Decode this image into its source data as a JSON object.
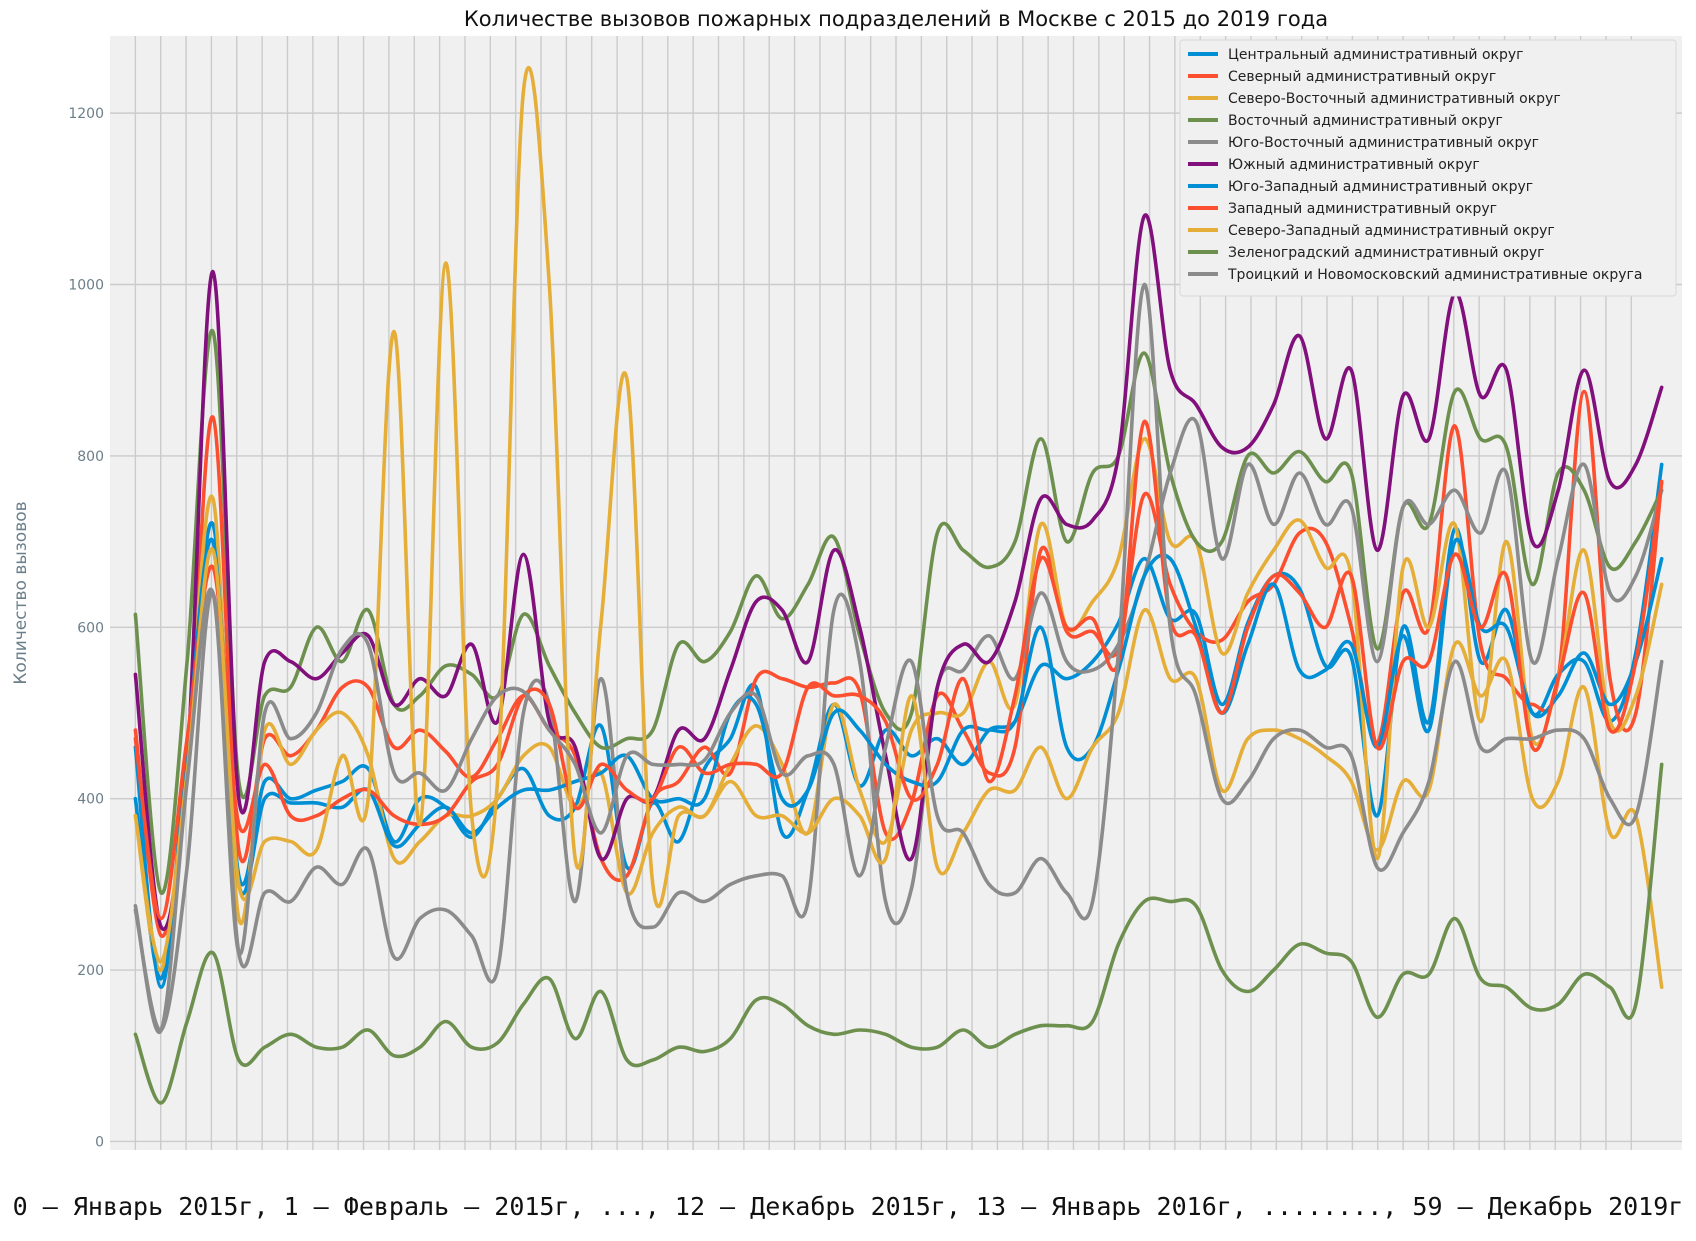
{
  "chart_data": {
    "type": "line",
    "title": "Количестве вызовов пожарных подразделений в Москве с 2015 до 2019 года",
    "xlabel": "",
    "ylabel": "Количество вызовов",
    "caption": "0 – Январь 2015г, 1 – Февраль – 2015г, ..., 12 – Декабрь 2015г, 13 – Январь 2016г, ........, 59 – Декабрь 2019г",
    "x": [
      0,
      1,
      2,
      3,
      4,
      5,
      6,
      7,
      8,
      9,
      10,
      11,
      12,
      13,
      14,
      15,
      16,
      17,
      18,
      19,
      20,
      21,
      22,
      23,
      24,
      25,
      26,
      27,
      28,
      29,
      30,
      31,
      32,
      33,
      34,
      35,
      36,
      37,
      38,
      39,
      40,
      41,
      42,
      43,
      44,
      45,
      46,
      47,
      48,
      49,
      50,
      51,
      52,
      53,
      54,
      55,
      56,
      57,
      58,
      59
    ],
    "xlim": [
      -1,
      61
    ],
    "ylim": [
      -10,
      1290
    ],
    "yticks": [
      0,
      200,
      400,
      600,
      800,
      1000,
      1200
    ],
    "grid": true,
    "background": "#f0f0f0",
    "legend_position": "top-right",
    "series": [
      {
        "name": "Центральный административный округ",
        "color": "#008fd5",
        "values": [
          400,
          190,
          450,
          720,
          310,
          420,
          400,
          410,
          420,
          435,
          350,
          400,
          390,
          355,
          400,
          435,
          380,
          390,
          485,
          320,
          395,
          350,
          435,
          470,
          530,
          360,
          410,
          510,
          415,
          480,
          450,
          470,
          440,
          480,
          490,
          555,
          540,
          560,
          605,
          680,
          610,
          615,
          510,
          605,
          660,
          645,
          555,
          565,
          380,
          600,
          490,
          715,
          560,
          620,
          500,
          545,
          560,
          490,
          570,
          790
        ]
      },
      {
        "name": "Северный административный округ",
        "color": "#fc4f30",
        "values": [
          480,
          240,
          430,
          845,
          340,
          470,
          450,
          480,
          530,
          530,
          460,
          480,
          455,
          425,
          470,
          520,
          480,
          450,
          330,
          310,
          400,
          420,
          460,
          430,
          540,
          540,
          530,
          535,
          525,
          360,
          395,
          520,
          480,
          430,
          460,
          690,
          595,
          595,
          575,
          755,
          650,
          595,
          585,
          630,
          650,
          710,
          700,
          600,
          465,
          640,
          600,
          835,
          580,
          540,
          510,
          540,
          875,
          540,
          500,
          770
        ]
      },
      {
        "name": "Северо-Восточный административный округ",
        "color": "#e5ae38",
        "values": [
          380,
          200,
          450,
          750,
          260,
          480,
          440,
          480,
          500,
          450,
          330,
          350,
          380,
          380,
          400,
          450,
          460,
          390,
          430,
          290,
          360,
          390,
          380,
          440,
          485,
          440,
          360,
          510,
          410,
          350,
          480,
          500,
          500,
          560,
          510,
          720,
          600,
          630,
          680,
          820,
          700,
          700,
          570,
          640,
          690,
          725,
          670,
          660,
          330,
          670,
          600,
          720,
          490,
          700,
          470,
          540,
          690,
          490,
          520,
          650
        ]
      },
      {
        "name": "Восточный административный округ",
        "color": "#6d904f",
        "values": [
          615,
          290,
          560,
          945,
          420,
          520,
          530,
          600,
          560,
          620,
          510,
          520,
          555,
          545,
          520,
          615,
          555,
          500,
          460,
          470,
          480,
          580,
          560,
          595,
          660,
          610,
          650,
          705,
          590,
          500,
          500,
          710,
          690,
          670,
          700,
          820,
          700,
          780,
          800,
          920,
          780,
          700,
          700,
          800,
          780,
          805,
          770,
          780,
          575,
          740,
          720,
          875,
          820,
          810,
          650,
          780,
          760,
          670,
          700,
          760
        ]
      },
      {
        "name": "Юго-Восточный административный округ",
        "color": "#8b8b8b",
        "values": [
          270,
          130,
          320,
          640,
          220,
          290,
          280,
          320,
          300,
          340,
          215,
          260,
          270,
          240,
          200,
          500,
          510,
          280,
          540,
          290,
          250,
          290,
          280,
          300,
          310,
          310,
          280,
          620,
          560,
          280,
          295,
          530,
          550,
          590,
          540,
          640,
          560,
          550,
          580,
          660,
          780,
          840,
          680,
          790,
          720,
          780,
          720,
          740,
          560,
          740,
          720,
          760,
          710,
          780,
          560,
          680,
          790,
          640,
          660,
          760
        ]
      },
      {
        "name": "Южный административный округ",
        "color": "#810f7c",
        "values": [
          545,
          250,
          440,
          1015,
          400,
          560,
          560,
          540,
          570,
          590,
          510,
          540,
          520,
          580,
          490,
          685,
          490,
          460,
          330,
          400,
          400,
          480,
          470,
          550,
          630,
          620,
          560,
          690,
          600,
          450,
          330,
          530,
          580,
          560,
          630,
          750,
          720,
          725,
          800,
          1080,
          900,
          860,
          810,
          810,
          860,
          940,
          820,
          900,
          690,
          870,
          820,
          990,
          870,
          900,
          700,
          760,
          900,
          770,
          790,
          880
        ]
      },
      {
        "name": "Юго-Западный административный округ",
        "color": "#008fd5",
        "values": [
          460,
          180,
          460,
          700,
          300,
          400,
          395,
          395,
          390,
          410,
          345,
          370,
          390,
          360,
          390,
          410,
          410,
          420,
          430,
          450,
          400,
          400,
          400,
          500,
          510,
          400,
          410,
          500,
          480,
          440,
          420,
          420,
          480,
          480,
          490,
          600,
          460,
          460,
          550,
          660,
          680,
          600,
          500,
          580,
          650,
          550,
          550,
          580,
          460,
          590,
          480,
          700,
          600,
          600,
          500,
          520,
          570,
          510,
          560,
          680
        ]
      },
      {
        "name": "Западный административный округ",
        "color": "#fc4f30",
        "values": [
          470,
          260,
          470,
          670,
          370,
          440,
          380,
          380,
          400,
          410,
          380,
          370,
          380,
          420,
          440,
          520,
          510,
          390,
          440,
          410,
          400,
          460,
          430,
          440,
          440,
          430,
          530,
          520,
          520,
          490,
          400,
          440,
          540,
          420,
          520,
          680,
          600,
          610,
          560,
          840,
          610,
          590,
          500,
          600,
          660,
          640,
          600,
          660,
          460,
          560,
          560,
          685,
          600,
          660,
          460,
          540,
          640,
          480,
          560,
          770
        ]
      },
      {
        "name": "Северо-Западный административный округ",
        "color": "#e5ae38",
        "values": [
          380,
          210,
          430,
          690,
          300,
          350,
          350,
          340,
          450,
          400,
          945,
          370,
          1025,
          380,
          420,
          1225,
          1000,
          330,
          605,
          890,
          300,
          380,
          380,
          420,
          380,
          380,
          360,
          400,
          380,
          330,
          520,
          320,
          360,
          410,
          410,
          460,
          400,
          460,
          500,
          620,
          540,
          540,
          410,
          470,
          480,
          470,
          450,
          420,
          340,
          420,
          410,
          580,
          520,
          560,
          400,
          420,
          530,
          360,
          380,
          180
        ]
      },
      {
        "name": "Зеленоградский административный округ",
        "color": "#6d904f",
        "values": [
          125,
          45,
          140,
          220,
          95,
          110,
          125,
          110,
          110,
          130,
          100,
          110,
          140,
          110,
          115,
          160,
          190,
          120,
          175,
          95,
          95,
          110,
          105,
          120,
          165,
          160,
          135,
          125,
          130,
          125,
          110,
          110,
          130,
          110,
          125,
          135,
          135,
          140,
          230,
          280,
          280,
          275,
          200,
          175,
          200,
          230,
          220,
          210,
          145,
          195,
          195,
          260,
          190,
          180,
          155,
          160,
          195,
          180,
          160,
          440
        ]
      },
      {
        "name": "Троицкий и Новомосковский административные округа",
        "color": "#8b8b8b",
        "values": [
          275,
          130,
          420,
          640,
          220,
          500,
          470,
          500,
          575,
          580,
          430,
          430,
          410,
          470,
          520,
          525,
          480,
          440,
          360,
          450,
          440,
          440,
          445,
          500,
          520,
          430,
          450,
          440,
          310,
          460,
          560,
          380,
          360,
          300,
          290,
          330,
          290,
          280,
          570,
          1000,
          600,
          520,
          400,
          420,
          470,
          480,
          460,
          450,
          320,
          360,
          420,
          560,
          460,
          470,
          470,
          480,
          470,
          400,
          380,
          560
        ]
      }
    ]
  }
}
